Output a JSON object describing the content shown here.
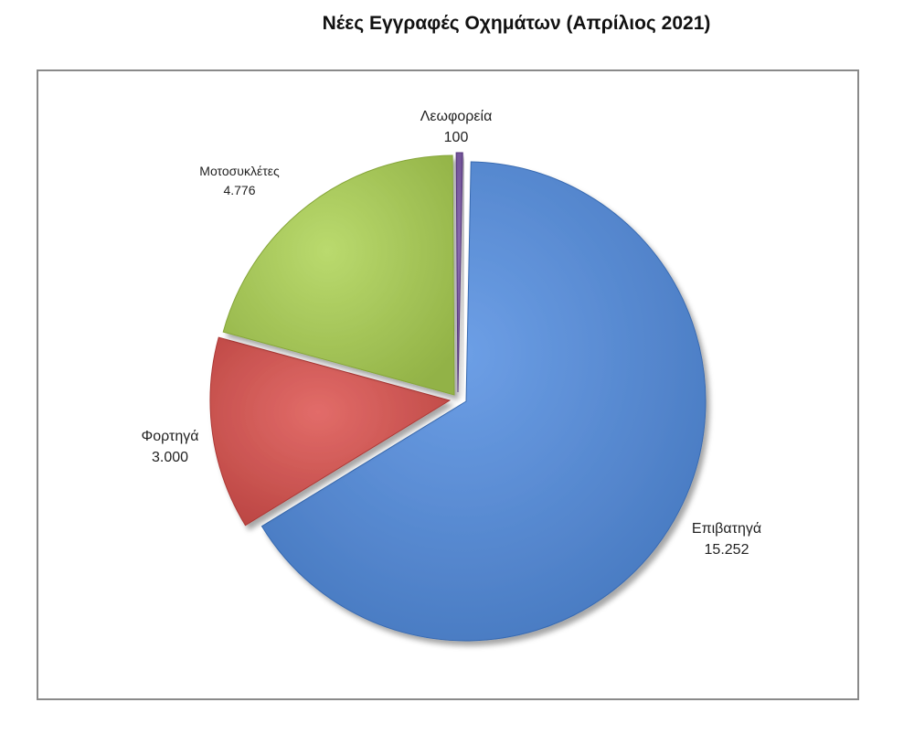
{
  "title": "Νέες Εγγραφές Οχημάτων (Απρίλιος  2021)",
  "chart_data": {
    "type": "pie",
    "title": "Νέες Εγγραφές Οχημάτων (Απρίλιος  2021)",
    "legend": "none",
    "slices": [
      {
        "label": "Επιβατηγά",
        "value_label": "15.252",
        "value": 15252,
        "color": "#5b8dd4"
      },
      {
        "label": "Φορτηγά",
        "value_label": "3.000",
        "value": 3000,
        "color": "#d05a57"
      },
      {
        "label": "Μοτοσυκλέτες",
        "value_label": "4.776",
        "value": 4776,
        "color": "#a8c85c"
      },
      {
        "label": "Λεωφορεία",
        "value_label": "100",
        "value": 100,
        "color": "#7a5ba0"
      }
    ]
  }
}
